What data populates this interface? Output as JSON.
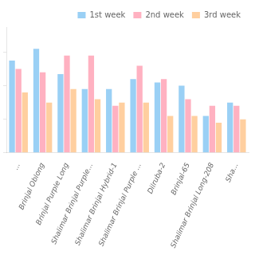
{
  "chart_data": {
    "type": "bar",
    "categories": [
      "...",
      "Brinjal Oblong",
      "Brinjal Purple Long",
      "Shalimar Brinjal Purple...",
      "Shalimar Brinjal Hybrid-1",
      "Shalimar Brinjal Purple ...",
      "Dilruba-2",
      "Brinjal-65",
      "Shalimar Brinjal Long-208",
      "Sha..."
    ],
    "series": [
      {
        "name": "1st week",
        "values": [
          55,
          62,
          47,
          38,
          38,
          44,
          42,
          40,
          22,
          30
        ]
      },
      {
        "name": "2nd week",
        "values": [
          50,
          48,
          58,
          58,
          28,
          52,
          44,
          32,
          28,
          28
        ]
      },
      {
        "name": "3rd week",
        "values": [
          36,
          30,
          38,
          32,
          30,
          30,
          22,
          22,
          18,
          20
        ]
      }
    ],
    "ylim": [
      0,
      75
    ],
    "yticks": [
      0,
      20,
      40,
      60
    ],
    "grid": false,
    "legend": "upper right",
    "tick_labels": "x"
  }
}
